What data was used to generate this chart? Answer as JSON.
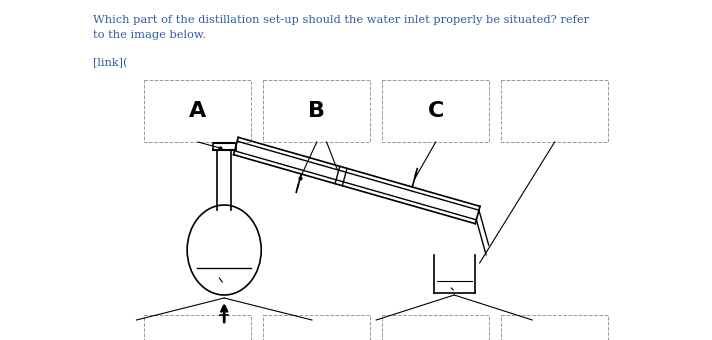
{
  "background_color": "#ffffff",
  "text_color": "#2b5da0",
  "question_line1": "Which part of the distillation set-up should the water inlet properly be situated? refer",
  "question_line2": "to the image below.",
  "link_text": "[link](",
  "labels": [
    "A",
    "B",
    "C",
    ""
  ],
  "box_color": "#aaaaaa",
  "line_color": "#000000",
  "fig_width": 7.12,
  "fig_height": 3.4,
  "dpi": 100
}
